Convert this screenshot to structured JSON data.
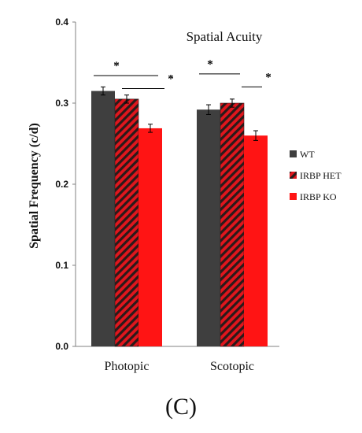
{
  "panel_label": "(C)",
  "colors": {
    "wt": "#3f3f3f",
    "het_stripe_dark": "#2a1a1a",
    "het_stripe_red": "#e0161d",
    "ko": "#ff1414",
    "axis": "#808080",
    "text": "#111111"
  },
  "chart_data": {
    "type": "bar",
    "title": "Spatial Acuity",
    "xlabel": "",
    "ylabel": "Spatial Frequency (c/d)",
    "ylim": [
      0,
      0.4
    ],
    "yticks": [
      "0.0",
      "0.1",
      "0.2",
      "0.3",
      "0.4"
    ],
    "categories": [
      "Photopic",
      "Scotopic"
    ],
    "series": [
      {
        "name": "WT",
        "values": [
          0.315,
          0.292
        ],
        "errors": [
          0.005,
          0.006
        ],
        "pattern": "solid-dark"
      },
      {
        "name": "IRBP HET",
        "values": [
          0.305,
          0.3
        ],
        "errors": [
          0.005,
          0.005
        ],
        "pattern": "hatched"
      },
      {
        "name": "IRBP KO",
        "values": [
          0.269,
          0.26
        ],
        "errors": [
          0.005,
          0.006
        ],
        "pattern": "solid-red"
      }
    ],
    "significance": [
      {
        "label": "*",
        "category": "Photopic",
        "from": "WT",
        "to": "IRBP KO"
      },
      {
        "label": "*",
        "category": "Photopic",
        "from": "IRBP HET",
        "to": "IRBP KO"
      },
      {
        "label": "*",
        "category": "Scotopic",
        "from": "WT",
        "to": "IRBP HET"
      },
      {
        "label": "*",
        "category": "Scotopic",
        "from": "IRBP HET",
        "to": "IRBP KO"
      }
    ],
    "legend_position": "right",
    "grid": false
  }
}
